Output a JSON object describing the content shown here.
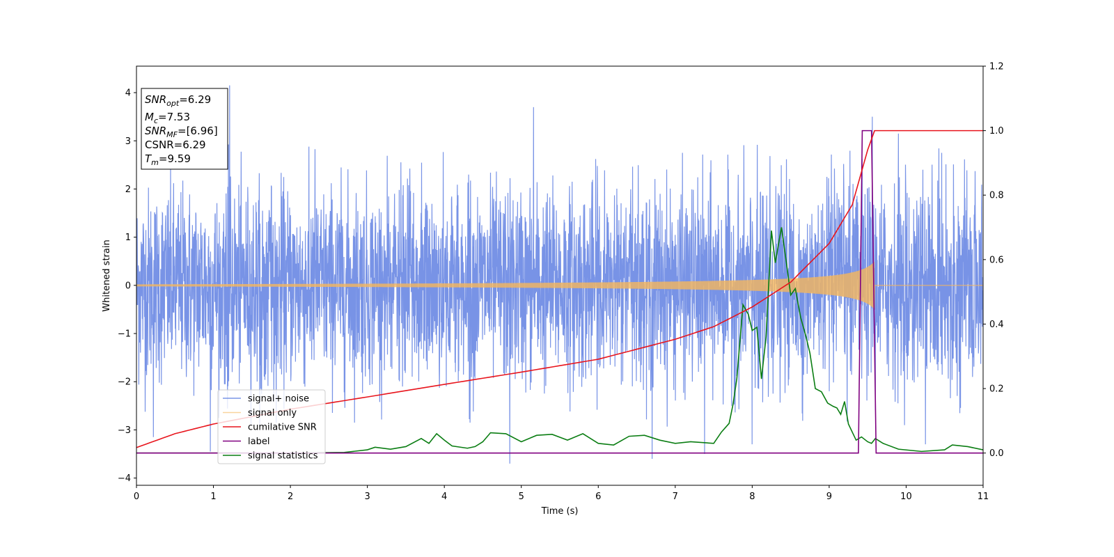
{
  "chart_data": {
    "type": "line",
    "xlabel": "Time (s)",
    "ylabel": "Whitened strain",
    "xlim": [
      0,
      11
    ],
    "ylim": [
      -4.15,
      4.55
    ],
    "y2lim": [
      -0.1,
      1.2
    ],
    "grid": false,
    "legend_position": "lower-left",
    "x_ticks": [
      0,
      1,
      2,
      3,
      4,
      5,
      6,
      7,
      8,
      9,
      10,
      11
    ],
    "y_ticks": [
      -4,
      -3,
      -2,
      -1,
      0,
      1,
      2,
      3,
      4
    ],
    "y_tick_labels": [
      "−4",
      "−3",
      "−2",
      "−1",
      "0",
      "1",
      "2",
      "3",
      "4"
    ],
    "y2_ticks": [
      0.0,
      0.2,
      0.4,
      0.6,
      0.8,
      1.0,
      1.2
    ],
    "y2_tick_labels": [
      "0.0",
      "0.2",
      "0.4",
      "0.6",
      "0.8",
      "1.0",
      "1.2"
    ],
    "info_box": {
      "snr_opt": {
        "sym": "SNR",
        "sub": "opt",
        "value": "=6.29"
      },
      "mc": {
        "sym": "M",
        "sub": "c",
        "value": "=7.53"
      },
      "snr_mf": {
        "sym": "SNR",
        "sub": "MF",
        "value": "=[6.96]"
      },
      "csnr": {
        "text": "CSNR=6.29"
      },
      "tm": {
        "sym": "T",
        "sub": "m",
        "value": "=9.59"
      }
    },
    "series": [
      {
        "name": "signal+ noise",
        "color": "#6c8ae4",
        "axis": "left",
        "kind": "noise",
        "envelope": {
          "sigma": 1.0,
          "range": [
            -3.7,
            4.15
          ]
        },
        "spikes": [
          {
            "x": 1.21,
            "y": 4.15
          },
          {
            "x": 5.16,
            "y": 3.7
          },
          {
            "x": 4.85,
            "y": -3.7
          },
          {
            "x": 9.56,
            "y": 3.5
          },
          {
            "x": 0.96,
            "y": -3.45
          },
          {
            "x": 6.7,
            "y": -3.6
          },
          {
            "x": 7.38,
            "y": -3.5
          },
          {
            "x": 0.22,
            "y": -3.15
          },
          {
            "x": 10.25,
            "y": -3.3
          },
          {
            "x": 8.0,
            "y": -3.3
          },
          {
            "x": 9.9,
            "y": 3.15
          }
        ]
      },
      {
        "name": "signal only",
        "color": "#f5b75c",
        "axis": "left",
        "kind": "chirp",
        "amplitude_start": 0.02,
        "amplitude_end": 0.5,
        "merger_time": 9.59
      },
      {
        "name": "cumilative SNR",
        "color": "#e8141c",
        "axis": "right",
        "points": [
          [
            0,
            0.017
          ],
          [
            0.5,
            0.06
          ],
          [
            1,
            0.09
          ],
          [
            2,
            0.136
          ],
          [
            3,
            0.174
          ],
          [
            4,
            0.213
          ],
          [
            5,
            0.251
          ],
          [
            6,
            0.291
          ],
          [
            7,
            0.353
          ],
          [
            7.5,
            0.392
          ],
          [
            8,
            0.453
          ],
          [
            8.5,
            0.53
          ],
          [
            9,
            0.65
          ],
          [
            9.3,
            0.77
          ],
          [
            9.5,
            0.94
          ],
          [
            9.59,
            1.0
          ],
          [
            11,
            1.0
          ]
        ]
      },
      {
        "name": "label",
        "color": "#800080",
        "axis": "right",
        "points": [
          [
            0,
            0.0
          ],
          [
            9.38,
            0.0
          ],
          [
            9.43,
            1.0
          ],
          [
            9.55,
            1.0
          ],
          [
            9.61,
            0.0
          ],
          [
            11,
            0.0
          ]
        ]
      },
      {
        "name": "signal statistics",
        "color": "#0a7d12",
        "axis": "right",
        "points": [
          [
            0,
            0.0
          ],
          [
            2.0,
            0.0
          ],
          [
            2.7,
            0.002
          ],
          [
            3.0,
            0.01
          ],
          [
            3.1,
            0.018
          ],
          [
            3.3,
            0.012
          ],
          [
            3.5,
            0.02
          ],
          [
            3.7,
            0.045
          ],
          [
            3.8,
            0.03
          ],
          [
            3.9,
            0.06
          ],
          [
            4.0,
            0.04
          ],
          [
            4.1,
            0.022
          ],
          [
            4.3,
            0.015
          ],
          [
            4.4,
            0.02
          ],
          [
            4.5,
            0.035
          ],
          [
            4.6,
            0.063
          ],
          [
            4.8,
            0.06
          ],
          [
            5.0,
            0.035
          ],
          [
            5.2,
            0.055
          ],
          [
            5.4,
            0.058
          ],
          [
            5.6,
            0.04
          ],
          [
            5.8,
            0.06
          ],
          [
            6.0,
            0.03
          ],
          [
            6.2,
            0.025
          ],
          [
            6.4,
            0.052
          ],
          [
            6.6,
            0.055
          ],
          [
            6.8,
            0.04
          ],
          [
            7.0,
            0.03
          ],
          [
            7.2,
            0.035
          ],
          [
            7.5,
            0.03
          ],
          [
            7.6,
            0.065
          ],
          [
            7.7,
            0.092
          ],
          [
            7.75,
            0.15
          ],
          [
            7.8,
            0.23
          ],
          [
            7.88,
            0.46
          ],
          [
            7.95,
            0.43
          ],
          [
            8.0,
            0.38
          ],
          [
            8.06,
            0.39
          ],
          [
            8.12,
            0.23
          ],
          [
            8.18,
            0.36
          ],
          [
            8.25,
            0.69
          ],
          [
            8.3,
            0.59
          ],
          [
            8.38,
            0.7
          ],
          [
            8.45,
            0.58
          ],
          [
            8.5,
            0.49
          ],
          [
            8.56,
            0.51
          ],
          [
            8.63,
            0.42
          ],
          [
            8.7,
            0.36
          ],
          [
            8.75,
            0.31
          ],
          [
            8.82,
            0.2
          ],
          [
            8.9,
            0.19
          ],
          [
            8.98,
            0.155
          ],
          [
            9.05,
            0.145
          ],
          [
            9.1,
            0.14
          ],
          [
            9.15,
            0.12
          ],
          [
            9.2,
            0.16
          ],
          [
            9.25,
            0.09
          ],
          [
            9.35,
            0.04
          ],
          [
            9.42,
            0.05
          ],
          [
            9.5,
            0.035
          ],
          [
            9.55,
            0.03
          ],
          [
            9.6,
            0.045
          ],
          [
            9.7,
            0.03
          ],
          [
            9.9,
            0.012
          ],
          [
            10.2,
            0.005
          ],
          [
            10.5,
            0.01
          ],
          [
            10.6,
            0.025
          ],
          [
            10.8,
            0.02
          ],
          [
            11.0,
            0.01
          ]
        ]
      }
    ]
  }
}
